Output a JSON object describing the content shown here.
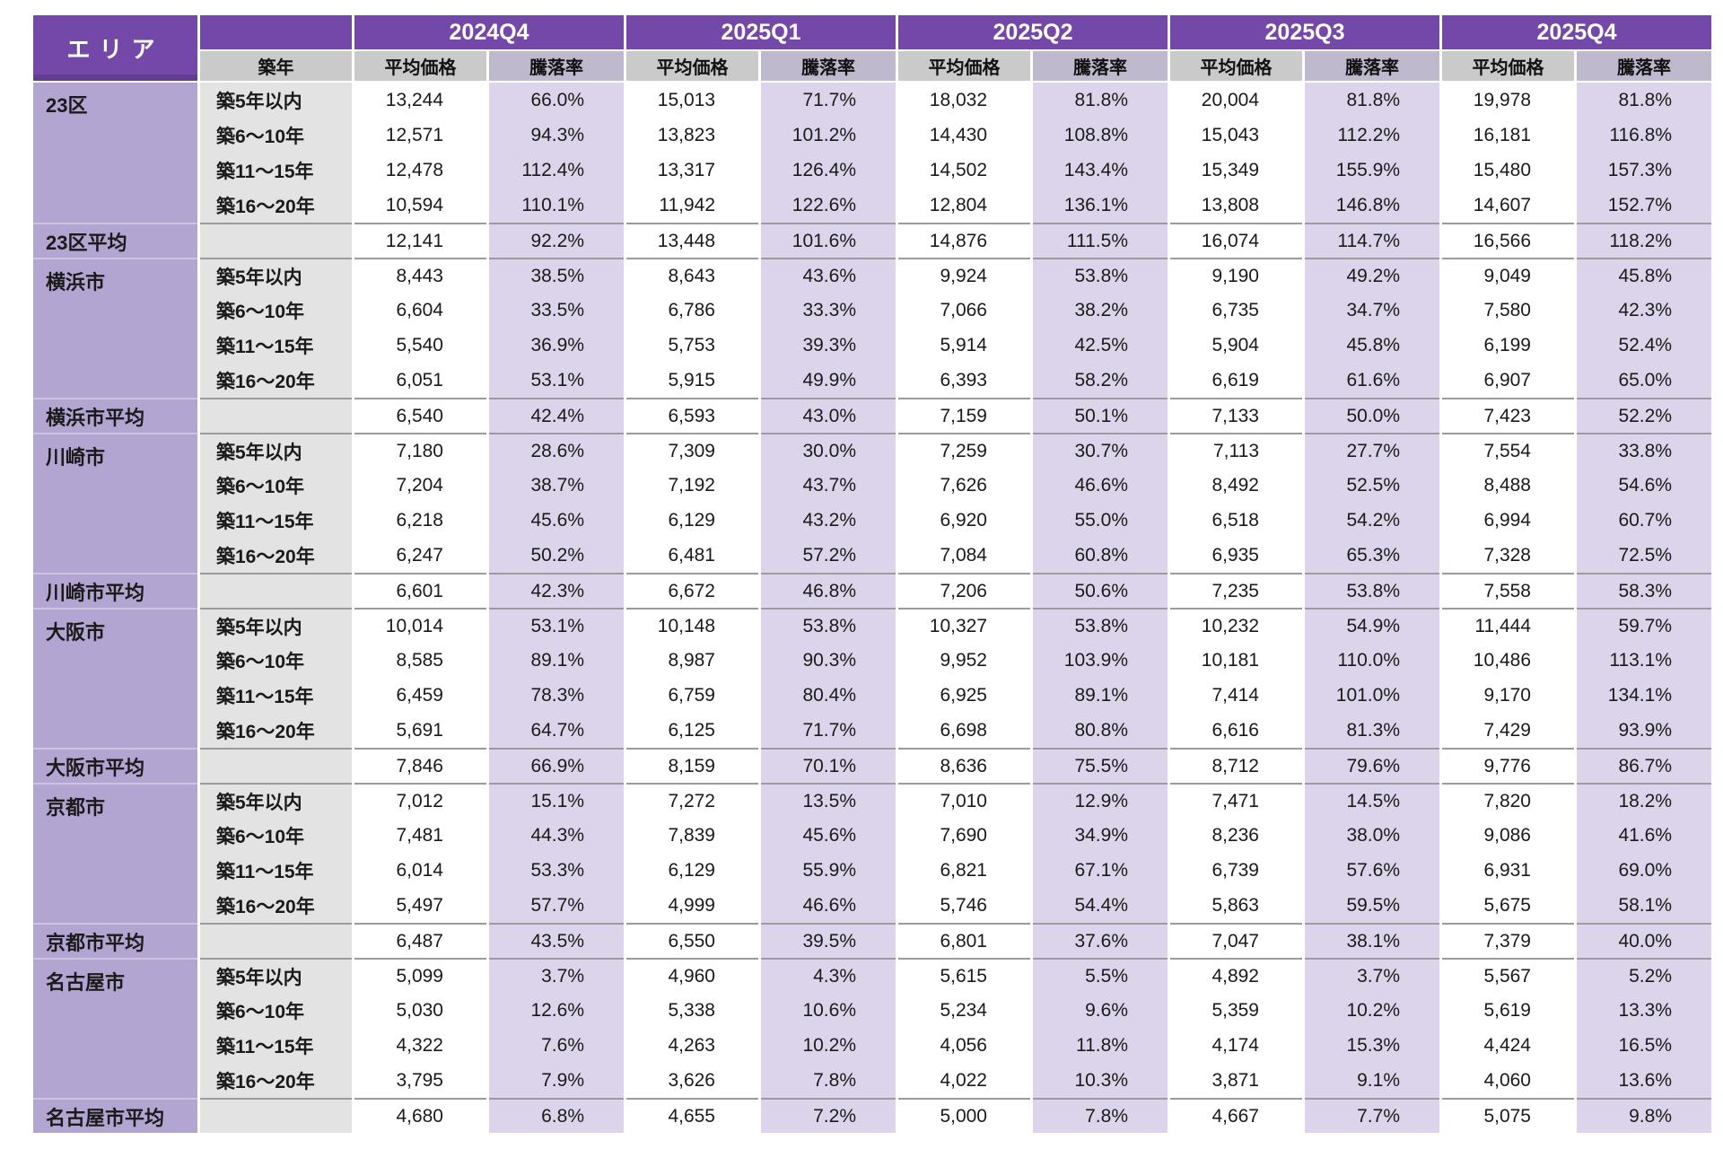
{
  "colors": {
    "header_purple": "#7448A8",
    "area_column_fill": "#B3A5D1",
    "change_column_fill": "#DBD4EA",
    "price_subheader_gray": "#CACACA",
    "change_subheader_gray": "#BFB9CE",
    "age_column_fill": "#E3E3E3",
    "separator_dark": "#9B9B9B",
    "separator_light": "#CDC5E0"
  },
  "chart_data": {
    "type": "table",
    "columns": {
      "area": "エリア",
      "age": "築年",
      "quarters": [
        "2024Q4",
        "2025Q1",
        "2025Q2",
        "2025Q3",
        "2025Q4"
      ],
      "metrics": [
        "平均価格",
        "騰落率"
      ]
    },
    "groups": [
      {
        "area": "23区",
        "average_label": "23区平均",
        "rows": [
          {
            "age": "築5年以内",
            "prices": [
              "13,244",
              "15,013",
              "18,032",
              "20,004",
              "19,978"
            ],
            "changes": [
              "66.0%",
              "71.7%",
              "81.8%",
              "81.8%",
              "81.8%"
            ]
          },
          {
            "age": "築6～10年",
            "prices": [
              "12,571",
              "13,823",
              "14,430",
              "15,043",
              "16,181"
            ],
            "changes": [
              "94.3%",
              "101.2%",
              "108.8%",
              "112.2%",
              "116.8%"
            ]
          },
          {
            "age": "築11～15年",
            "prices": [
              "12,478",
              "13,317",
              "14,502",
              "15,349",
              "15,480"
            ],
            "changes": [
              "112.4%",
              "126.4%",
              "143.4%",
              "155.9%",
              "157.3%"
            ]
          },
          {
            "age": "築16～20年",
            "prices": [
              "10,594",
              "11,942",
              "12,804",
              "13,808",
              "14,607"
            ],
            "changes": [
              "110.1%",
              "122.6%",
              "136.1%",
              "146.8%",
              "152.7%"
            ]
          }
        ],
        "average": {
          "prices": [
            "12,141",
            "13,448",
            "14,876",
            "16,074",
            "16,566"
          ],
          "changes": [
            "92.2%",
            "101.6%",
            "111.5%",
            "114.7%",
            "118.2%"
          ]
        }
      },
      {
        "area": "横浜市",
        "average_label": "横浜市平均",
        "rows": [
          {
            "age": "築5年以内",
            "prices": [
              "8,443",
              "8,643",
              "9,924",
              "9,190",
              "9,049"
            ],
            "changes": [
              "38.5%",
              "43.6%",
              "53.8%",
              "49.2%",
              "45.8%"
            ]
          },
          {
            "age": "築6～10年",
            "prices": [
              "6,604",
              "6,786",
              "7,066",
              "6,735",
              "7,580"
            ],
            "changes": [
              "33.5%",
              "33.3%",
              "38.2%",
              "34.7%",
              "42.3%"
            ]
          },
          {
            "age": "築11～15年",
            "prices": [
              "5,540",
              "5,753",
              "5,914",
              "5,904",
              "6,199"
            ],
            "changes": [
              "36.9%",
              "39.3%",
              "42.5%",
              "45.8%",
              "52.4%"
            ]
          },
          {
            "age": "築16～20年",
            "prices": [
              "6,051",
              "5,915",
              "6,393",
              "6,619",
              "6,907"
            ],
            "changes": [
              "53.1%",
              "49.9%",
              "58.2%",
              "61.6%",
              "65.0%"
            ]
          }
        ],
        "average": {
          "prices": [
            "6,540",
            "6,593",
            "7,159",
            "7,133",
            "7,423"
          ],
          "changes": [
            "42.4%",
            "43.0%",
            "50.1%",
            "50.0%",
            "52.2%"
          ]
        }
      },
      {
        "area": "川崎市",
        "average_label": "川崎市平均",
        "rows": [
          {
            "age": "築5年以内",
            "prices": [
              "7,180",
              "7,309",
              "7,259",
              "7,113",
              "7,554"
            ],
            "changes": [
              "28.6%",
              "30.0%",
              "30.7%",
              "27.7%",
              "33.8%"
            ]
          },
          {
            "age": "築6～10年",
            "prices": [
              "7,204",
              "7,192",
              "7,626",
              "8,492",
              "8,488"
            ],
            "changes": [
              "38.7%",
              "43.7%",
              "46.6%",
              "52.5%",
              "54.6%"
            ]
          },
          {
            "age": "築11～15年",
            "prices": [
              "6,218",
              "6,129",
              "6,920",
              "6,518",
              "6,994"
            ],
            "changes": [
              "45.6%",
              "43.2%",
              "55.0%",
              "54.2%",
              "60.7%"
            ]
          },
          {
            "age": "築16～20年",
            "prices": [
              "6,247",
              "6,481",
              "7,084",
              "6,935",
              "7,328"
            ],
            "changes": [
              "50.2%",
              "57.2%",
              "60.8%",
              "65.3%",
              "72.5%"
            ]
          }
        ],
        "average": {
          "prices": [
            "6,601",
            "6,672",
            "7,206",
            "7,235",
            "7,558"
          ],
          "changes": [
            "42.3%",
            "46.8%",
            "50.6%",
            "53.8%",
            "58.3%"
          ]
        }
      },
      {
        "area": "大阪市",
        "average_label": "大阪市平均",
        "rows": [
          {
            "age": "築5年以内",
            "prices": [
              "10,014",
              "10,148",
              "10,327",
              "10,232",
              "11,444"
            ],
            "changes": [
              "53.1%",
              "53.8%",
              "53.8%",
              "54.9%",
              "59.7%"
            ]
          },
          {
            "age": "築6～10年",
            "prices": [
              "8,585",
              "8,987",
              "9,952",
              "10,181",
              "10,486"
            ],
            "changes": [
              "89.1%",
              "90.3%",
              "103.9%",
              "110.0%",
              "113.1%"
            ]
          },
          {
            "age": "築11～15年",
            "prices": [
              "6,459",
              "6,759",
              "6,925",
              "7,414",
              "9,170"
            ],
            "changes": [
              "78.3%",
              "80.4%",
              "89.1%",
              "101.0%",
              "134.1%"
            ]
          },
          {
            "age": "築16～20年",
            "prices": [
              "5,691",
              "6,125",
              "6,698",
              "6,616",
              "7,429"
            ],
            "changes": [
              "64.7%",
              "71.7%",
              "80.8%",
              "81.3%",
              "93.9%"
            ]
          }
        ],
        "average": {
          "prices": [
            "7,846",
            "8,159",
            "8,636",
            "8,712",
            "9,776"
          ],
          "changes": [
            "66.9%",
            "70.1%",
            "75.5%",
            "79.6%",
            "86.7%"
          ]
        }
      },
      {
        "area": "京都市",
        "average_label": "京都市平均",
        "rows": [
          {
            "age": "築5年以内",
            "prices": [
              "7,012",
              "7,272",
              "7,010",
              "7,471",
              "7,820"
            ],
            "changes": [
              "15.1%",
              "13.5%",
              "12.9%",
              "14.5%",
              "18.2%"
            ]
          },
          {
            "age": "築6～10年",
            "prices": [
              "7,481",
              "7,839",
              "7,690",
              "8,236",
              "9,086"
            ],
            "changes": [
              "44.3%",
              "45.6%",
              "34.9%",
              "38.0%",
              "41.6%"
            ]
          },
          {
            "age": "築11～15年",
            "prices": [
              "6,014",
              "6,129",
              "6,821",
              "6,739",
              "6,931"
            ],
            "changes": [
              "53.3%",
              "55.9%",
              "67.1%",
              "57.6%",
              "69.0%"
            ]
          },
          {
            "age": "築16～20年",
            "prices": [
              "5,497",
              "4,999",
              "5,746",
              "5,863",
              "5,675"
            ],
            "changes": [
              "57.7%",
              "46.6%",
              "54.4%",
              "59.5%",
              "58.1%"
            ]
          }
        ],
        "average": {
          "prices": [
            "6,487",
            "6,550",
            "6,801",
            "7,047",
            "7,379"
          ],
          "changes": [
            "43.5%",
            "39.5%",
            "37.6%",
            "38.1%",
            "40.0%"
          ]
        }
      },
      {
        "area": "名古屋市",
        "average_label": "名古屋市平均",
        "rows": [
          {
            "age": "築5年以内",
            "prices": [
              "5,099",
              "4,960",
              "5,615",
              "4,892",
              "5,567"
            ],
            "changes": [
              "3.7%",
              "4.3%",
              "5.5%",
              "3.7%",
              "5.2%"
            ]
          },
          {
            "age": "築6～10年",
            "prices": [
              "5,030",
              "5,338",
              "5,234",
              "5,359",
              "5,619"
            ],
            "changes": [
              "12.6%",
              "10.6%",
              "9.6%",
              "10.2%",
              "13.3%"
            ]
          },
          {
            "age": "築11～15年",
            "prices": [
              "4,322",
              "4,263",
              "4,056",
              "4,174",
              "4,424"
            ],
            "changes": [
              "7.6%",
              "10.2%",
              "11.8%",
              "15.3%",
              "16.5%"
            ]
          },
          {
            "age": "築16～20年",
            "prices": [
              "3,795",
              "3,626",
              "4,022",
              "3,871",
              "4,060"
            ],
            "changes": [
              "7.9%",
              "7.8%",
              "10.3%",
              "9.1%",
              "13.6%"
            ]
          }
        ],
        "average": {
          "prices": [
            "4,680",
            "4,655",
            "5,000",
            "4,667",
            "5,075"
          ],
          "changes": [
            "6.8%",
            "7.2%",
            "7.8%",
            "7.7%",
            "9.8%"
          ]
        }
      }
    ]
  }
}
